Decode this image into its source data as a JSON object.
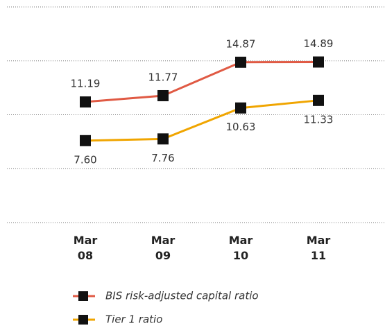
{
  "chart_data": {
    "type": "line",
    "categories": [
      "Mar\n08",
      "Mar\n09",
      "Mar\n10",
      "Mar\n11"
    ],
    "series": [
      {
        "name": "BIS risk-adjusted capital ratio",
        "color": "#e05a44",
        "values": [
          11.19,
          11.77,
          14.87,
          14.89
        ]
      },
      {
        "name": "Tier 1 ratio",
        "color": "#f0a500",
        "values": [
          7.6,
          7.76,
          10.63,
          11.33
        ],
        "value_labels": [
          "7.60",
          "7.76",
          "10.63",
          "11.33"
        ]
      }
    ],
    "ylim": [
      0,
      20
    ],
    "yticks": [
      0,
      5,
      10,
      15,
      20
    ],
    "grid": true
  }
}
